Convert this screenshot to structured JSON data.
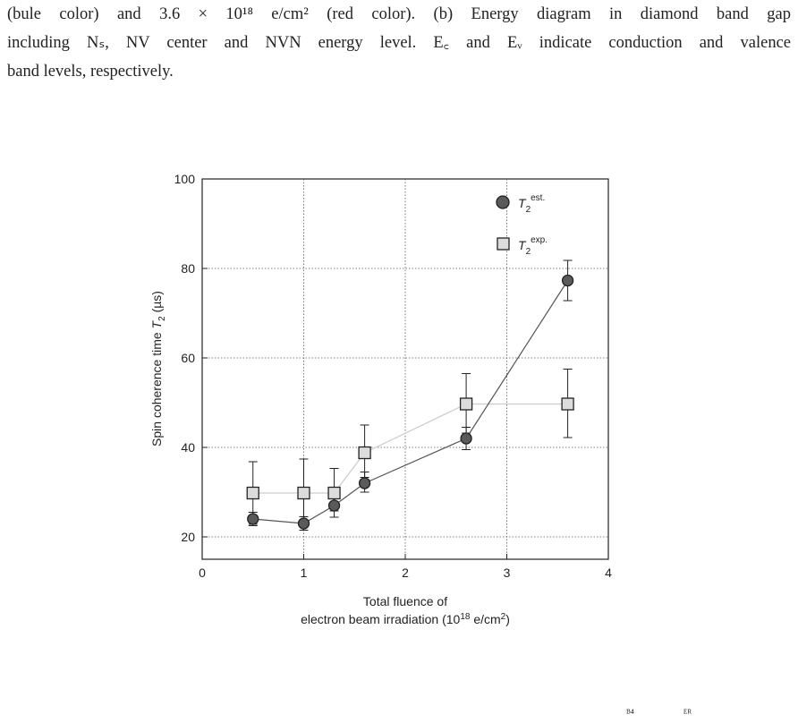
{
  "caption": {
    "line1": "(bule color) and 3.6 × 10¹⁸ e/cm² (red color). (b) Energy diagram in diamond band gap",
    "line2": "including Nₛ, NV center and NVN energy level. E꜀ and Eᵥ indicate conduction and valence",
    "line3": "band levels, respectively."
  },
  "chart_data": {
    "type": "scatter",
    "xlabel_line1": "Total fluence of",
    "xlabel_line2_pre": "electron beam irradiation (10",
    "xlabel_line2_sup": "18",
    "xlabel_line2_post": " e/cm",
    "xlabel_line2_sup2": "2",
    "xlabel_line2_end": ")",
    "ylabel_main": "Spin coherence time ",
    "ylabel_var": "T",
    "ylabel_sub": "2",
    "ylabel_unit": " (µs)",
    "xlim": [
      0,
      4
    ],
    "ylim": [
      15,
      100
    ],
    "xticks": [
      0,
      1,
      2,
      3,
      4
    ],
    "yticks": [
      20,
      40,
      60,
      80,
      100
    ],
    "grid": true,
    "legend_position": "top-right",
    "series": [
      {
        "name_var": "T",
        "name_sub": "2",
        "name_sup": "est.",
        "marker": "circle",
        "fill": "#5a5a5a",
        "line_color": "#555555",
        "x": [
          0.5,
          1.0,
          1.3,
          1.6,
          2.6,
          3.6
        ],
        "y": [
          24,
          23,
          27,
          32,
          42,
          77.3
        ],
        "err_low": [
          1.5,
          1.5,
          2.6,
          2,
          2.5,
          4.5
        ],
        "err_high": [
          1.5,
          1.5,
          2.8,
          2.5,
          2.5,
          4.5
        ]
      },
      {
        "name_var": "T",
        "name_sub": "2",
        "name_sup": "exp.",
        "marker": "square",
        "fill": "#dcdcdc",
        "line_color": "#cccccc",
        "x": [
          0.5,
          1.0,
          1.3,
          1.6,
          2.6,
          3.6
        ],
        "y": [
          29.8,
          29.8,
          29.8,
          38.8,
          49.7,
          49.7
        ],
        "err_low": [
          7,
          7,
          4,
          5.5,
          6.5,
          7.5
        ],
        "err_high": [
          7,
          7.6,
          5.5,
          6.2,
          6.8,
          7.8
        ]
      }
    ]
  },
  "footer": {
    "mark1": "ᴮ⁴",
    "mark2": "ᴱᴿ"
  }
}
